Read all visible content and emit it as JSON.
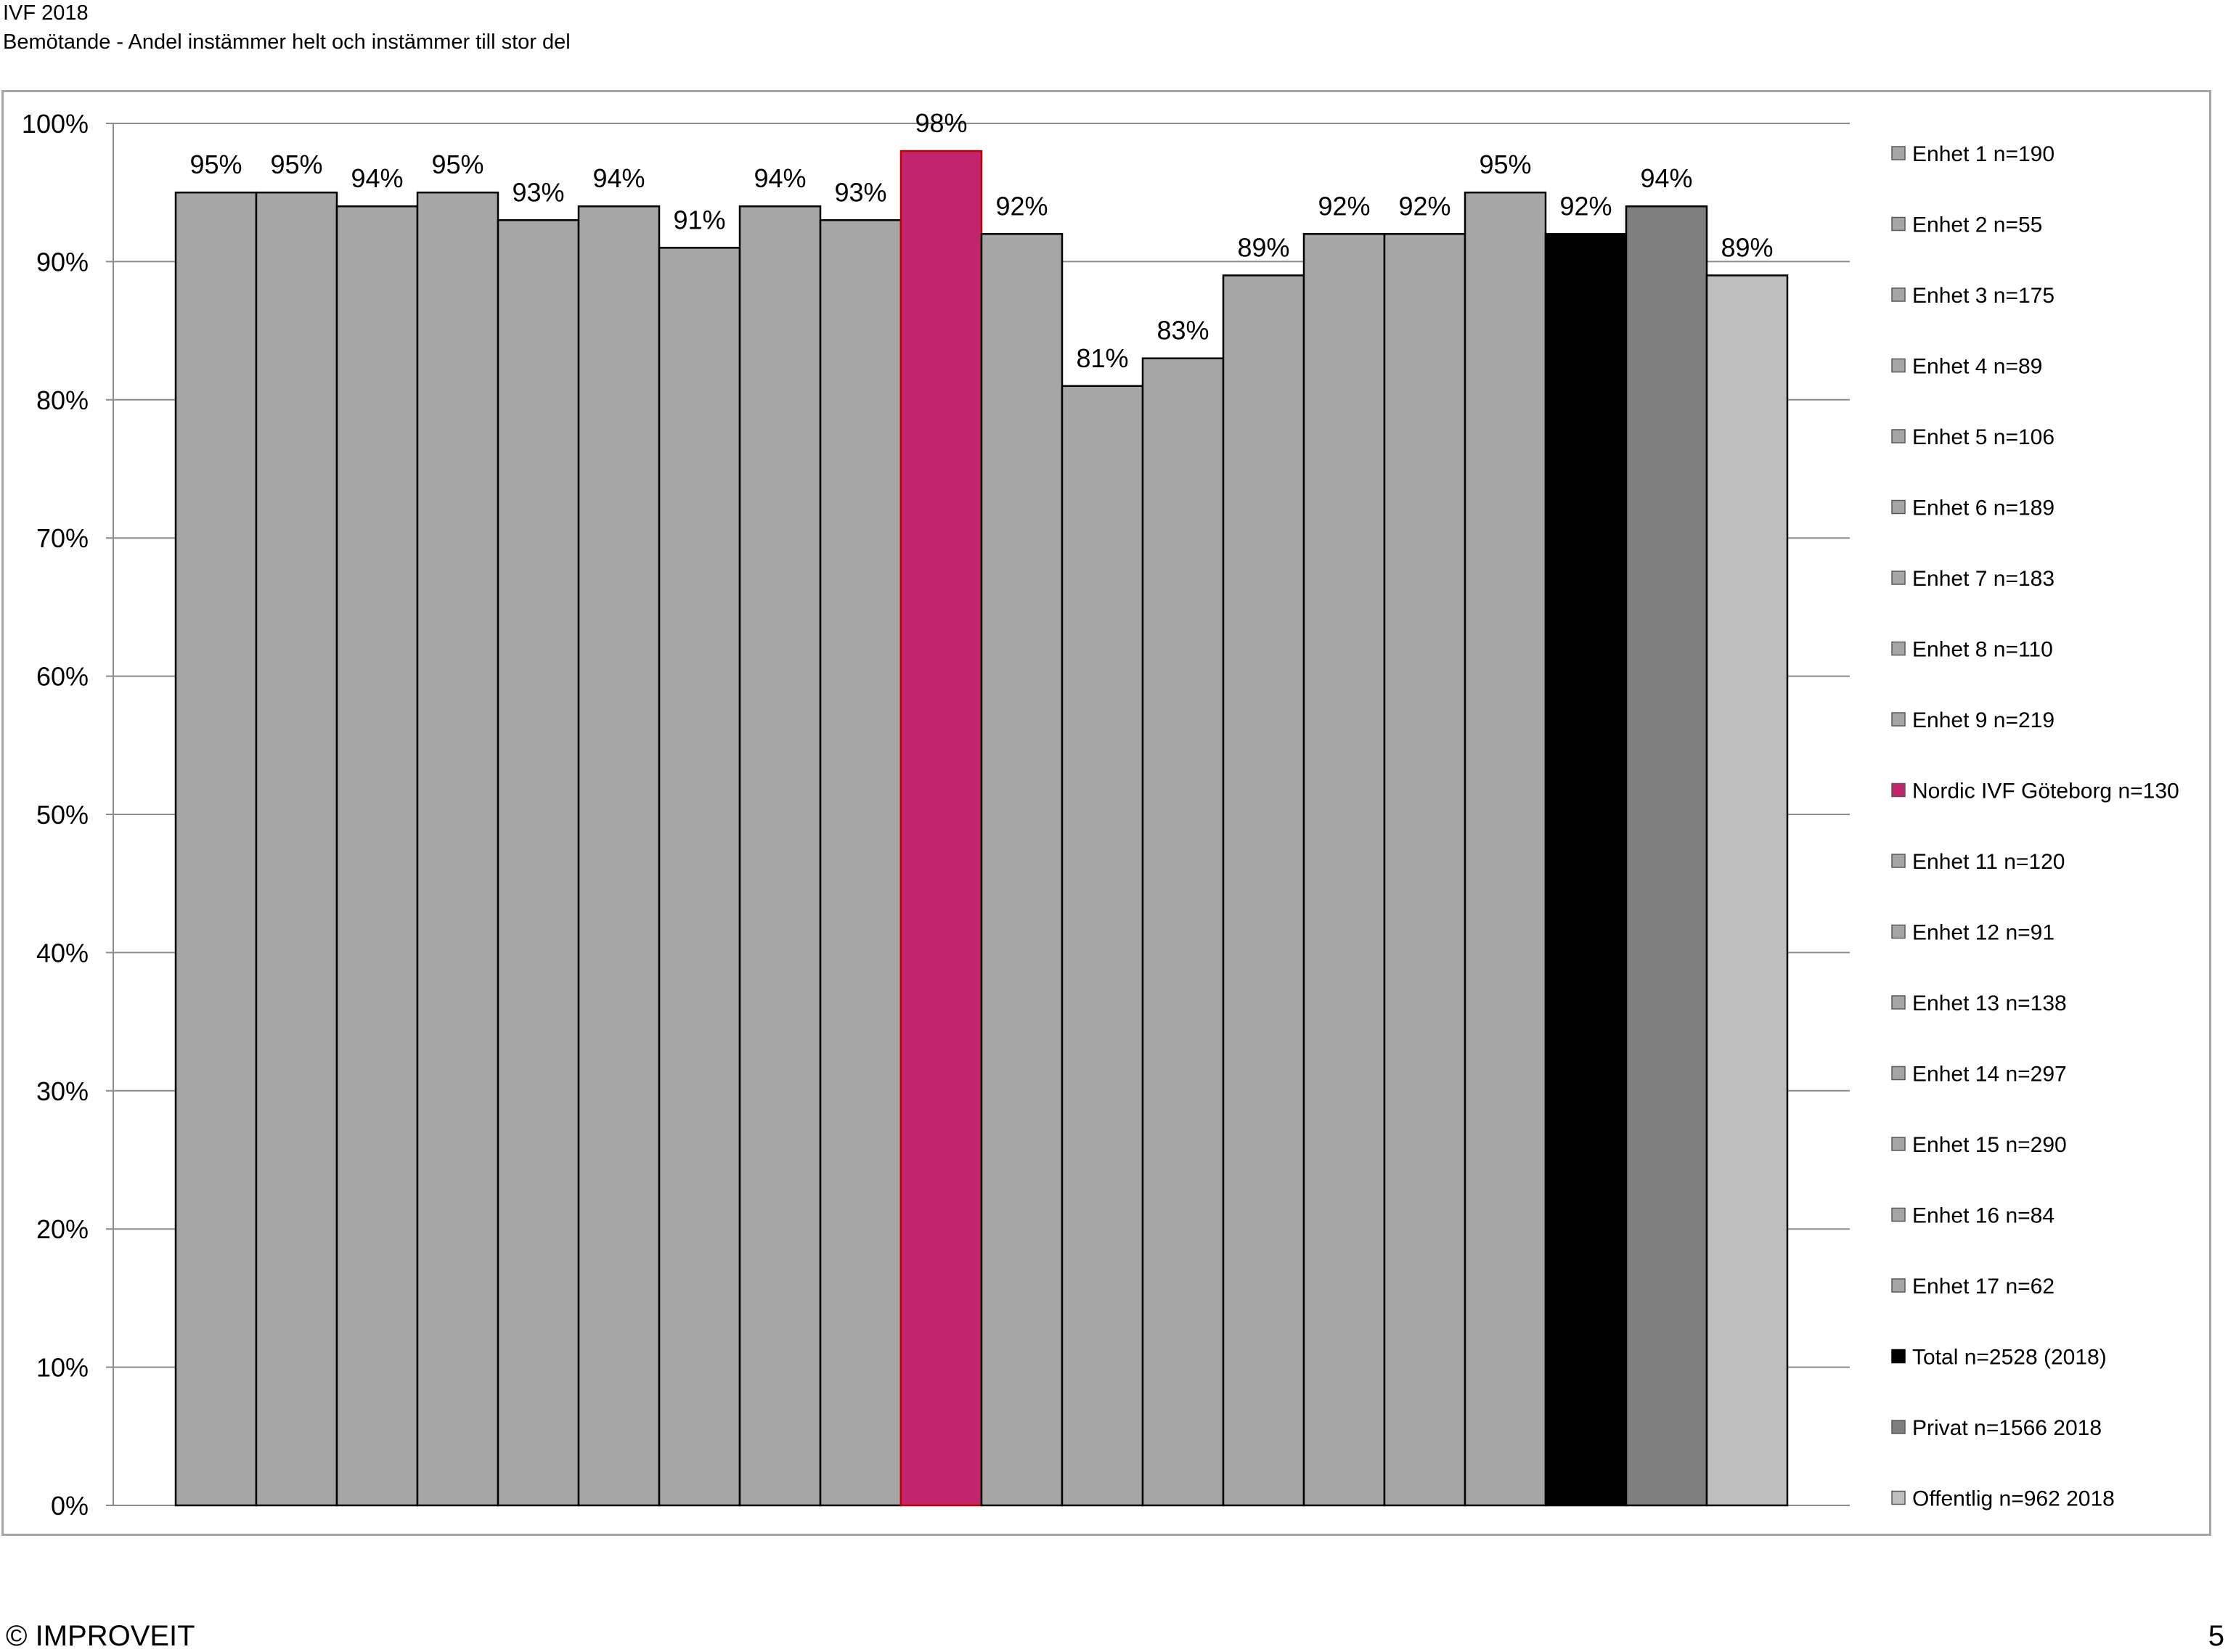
{
  "header": {
    "title": "IVF 2018",
    "subtitle": "Bemötande - Andel instämmer helt och instämmer till stor del"
  },
  "footer": {
    "copyright": "© IMPROVEIT",
    "page_number": "5"
  },
  "chart_data": {
    "type": "bar",
    "title": "",
    "xlabel": "",
    "ylabel": "",
    "ylim": [
      0,
      100
    ],
    "y_ticks": [
      0,
      10,
      20,
      30,
      40,
      50,
      60,
      70,
      80,
      90,
      100
    ],
    "y_tick_format": "{v}%",
    "grid": true,
    "legend_position": "right",
    "series": [
      {
        "name": "Enhet 1 n=190",
        "value": 95,
        "label": "95%",
        "color": "#a6a6a6"
      },
      {
        "name": "Enhet 2 n=55",
        "value": 95,
        "label": "95%",
        "color": "#a6a6a6"
      },
      {
        "name": "Enhet 3 n=175",
        "value": 94,
        "label": "94%",
        "color": "#a6a6a6"
      },
      {
        "name": "Enhet 4 n=89",
        "value": 95,
        "label": "95%",
        "color": "#a6a6a6"
      },
      {
        "name": "Enhet 5 n=106",
        "value": 93,
        "label": "93%",
        "color": "#a6a6a6"
      },
      {
        "name": "Enhet 6 n=189",
        "value": 94,
        "label": "94%",
        "color": "#a6a6a6"
      },
      {
        "name": "Enhet 7 n=183",
        "value": 91,
        "label": "91%",
        "color": "#a6a6a6"
      },
      {
        "name": "Enhet 8 n=110",
        "value": 94,
        "label": "94%",
        "color": "#a6a6a6"
      },
      {
        "name": "Enhet 9 n=219",
        "value": 93,
        "label": "93%",
        "color": "#a6a6a6"
      },
      {
        "name": "Nordic IVF Göteborg n=130",
        "value": 98,
        "label": "98%",
        "color": "#c2256e"
      },
      {
        "name": "Enhet 11 n=120",
        "value": 92,
        "label": "92%",
        "color": "#a6a6a6"
      },
      {
        "name": "Enhet 12 n=91",
        "value": 81,
        "label": "81%",
        "color": "#a6a6a6"
      },
      {
        "name": "Enhet 13 n=138",
        "value": 83,
        "label": "83%",
        "color": "#a6a6a6"
      },
      {
        "name": "Enhet 14 n=297",
        "value": 89,
        "label": "89%",
        "color": "#a6a6a6"
      },
      {
        "name": "Enhet 15 n=290",
        "value": 92,
        "label": "92%",
        "color": "#a6a6a6"
      },
      {
        "name": "Enhet 16 n=84",
        "value": 92,
        "label": "92%",
        "color": "#a6a6a6"
      },
      {
        "name": "Enhet 17 n=62",
        "value": 95,
        "label": "95%",
        "color": "#a6a6a6"
      },
      {
        "name": "Total n=2528 (2018)",
        "value": 92,
        "label": "92%",
        "color": "#000000"
      },
      {
        "name": "Privat n=1566 2018",
        "value": 94,
        "label": "94%",
        "color": "#7f7f7f"
      },
      {
        "name": "Offentlig n=962 2018",
        "value": 89,
        "label": "89%",
        "color": "#bfbfbf"
      }
    ]
  }
}
